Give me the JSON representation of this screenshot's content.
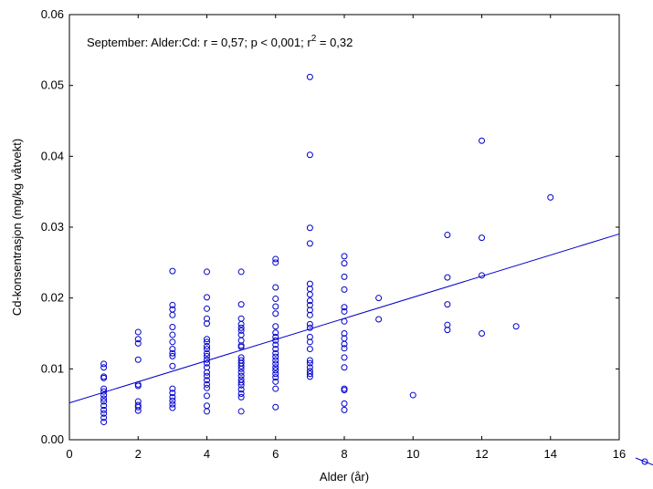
{
  "chart_data": {
    "type": "scatter",
    "title": "",
    "xlabel": "Alder (år)",
    "ylabel": "Cd-konsentrasjon (mg/kg våtvekt)",
    "xlim": [
      0,
      16
    ],
    "ylim": [
      0,
      0.06
    ],
    "x_ticks": [
      "0",
      "2",
      "4",
      "6",
      "8",
      "10",
      "12",
      "14",
      "16"
    ],
    "y_ticks": [
      "0.00",
      "0.01",
      "0.02",
      "0.03",
      "0.04",
      "0.05",
      "0.06"
    ],
    "grid": false,
    "annotation": {
      "prefix": "September:  Alder:Cd:    r = 0,57; p < 0,001; r",
      "sup": "2",
      "suffix": " = 0,32"
    },
    "marker_color": "#0000cc",
    "fit_line": {
      "intercept": 0.0052,
      "slope": 0.00149,
      "color": "#0000cc"
    },
    "points": [
      [
        1,
        0.0107
      ],
      [
        1,
        0.0102
      ],
      [
        1,
        0.0089
      ],
      [
        1,
        0.0087
      ],
      [
        1,
        0.0072
      ],
      [
        1,
        0.0068
      ],
      [
        1,
        0.0063
      ],
      [
        1,
        0.0058
      ],
      [
        1,
        0.0054
      ],
      [
        1,
        0.0048
      ],
      [
        1,
        0.0042
      ],
      [
        1,
        0.0037
      ],
      [
        1,
        0.0031
      ],
      [
        1,
        0.0025
      ],
      [
        2,
        0.0152
      ],
      [
        2,
        0.0142
      ],
      [
        2,
        0.0136
      ],
      [
        2,
        0.0113
      ],
      [
        2,
        0.0078
      ],
      [
        2,
        0.0076
      ],
      [
        2,
        0.0054
      ],
      [
        2,
        0.0049
      ],
      [
        2,
        0.0046
      ],
      [
        2,
        0.0041
      ],
      [
        3,
        0.0238
      ],
      [
        3,
        0.019
      ],
      [
        3,
        0.0184
      ],
      [
        3,
        0.0176
      ],
      [
        3,
        0.0159
      ],
      [
        3,
        0.0148
      ],
      [
        3,
        0.0138
      ],
      [
        3,
        0.0128
      ],
      [
        3,
        0.0122
      ],
      [
        3,
        0.0118
      ],
      [
        3,
        0.0104
      ],
      [
        3,
        0.0072
      ],
      [
        3,
        0.0066
      ],
      [
        3,
        0.006
      ],
      [
        3,
        0.0055
      ],
      [
        3,
        0.005
      ],
      [
        3,
        0.0045
      ],
      [
        4,
        0.0237
      ],
      [
        4,
        0.0201
      ],
      [
        4,
        0.0185
      ],
      [
        4,
        0.0171
      ],
      [
        4,
        0.0164
      ],
      [
        4,
        0.0142
      ],
      [
        4,
        0.0138
      ],
      [
        4,
        0.0132
      ],
      [
        4,
        0.0128
      ],
      [
        4,
        0.0122
      ],
      [
        4,
        0.0118
      ],
      [
        4,
        0.0113
      ],
      [
        4,
        0.0108
      ],
      [
        4,
        0.0102
      ],
      [
        4,
        0.0095
      ],
      [
        4,
        0.009
      ],
      [
        4,
        0.0084
      ],
      [
        4,
        0.0078
      ],
      [
        4,
        0.0073
      ],
      [
        4,
        0.0062
      ],
      [
        4,
        0.0048
      ],
      [
        4,
        0.004
      ],
      [
        5,
        0.0237
      ],
      [
        5,
        0.0191
      ],
      [
        5,
        0.0171
      ],
      [
        5,
        0.0163
      ],
      [
        5,
        0.0158
      ],
      [
        5,
        0.0154
      ],
      [
        5,
        0.0148
      ],
      [
        5,
        0.014
      ],
      [
        5,
        0.0133
      ],
      [
        5,
        0.0131
      ],
      [
        5,
        0.0116
      ],
      [
        5,
        0.0112
      ],
      [
        5,
        0.0108
      ],
      [
        5,
        0.0104
      ],
      [
        5,
        0.01
      ],
      [
        5,
        0.0095
      ],
      [
        5,
        0.009
      ],
      [
        5,
        0.0085
      ],
      [
        5,
        0.0081
      ],
      [
        5,
        0.0077
      ],
      [
        5,
        0.0071
      ],
      [
        5,
        0.0065
      ],
      [
        5,
        0.006
      ],
      [
        5,
        0.004
      ],
      [
        6,
        0.0255
      ],
      [
        6,
        0.025
      ],
      [
        6,
        0.0215
      ],
      [
        6,
        0.0199
      ],
      [
        6,
        0.0188
      ],
      [
        6,
        0.0178
      ],
      [
        6,
        0.016
      ],
      [
        6,
        0.0151
      ],
      [
        6,
        0.0145
      ],
      [
        6,
        0.014
      ],
      [
        6,
        0.0134
      ],
      [
        6,
        0.0128
      ],
      [
        6,
        0.0122
      ],
      [
        6,
        0.0117
      ],
      [
        6,
        0.0112
      ],
      [
        6,
        0.0107
      ],
      [
        6,
        0.0102
      ],
      [
        6,
        0.0098
      ],
      [
        6,
        0.0093
      ],
      [
        6,
        0.0088
      ],
      [
        6,
        0.0082
      ],
      [
        6,
        0.0072
      ],
      [
        6,
        0.0046
      ],
      [
        7,
        0.0512
      ],
      [
        7,
        0.0402
      ],
      [
        7,
        0.0299
      ],
      [
        7,
        0.0277
      ],
      [
        7,
        0.022
      ],
      [
        7,
        0.0213
      ],
      [
        7,
        0.0205
      ],
      [
        7,
        0.0196
      ],
      [
        7,
        0.019
      ],
      [
        7,
        0.0183
      ],
      [
        7,
        0.0176
      ],
      [
        7,
        0.0163
      ],
      [
        7,
        0.0158
      ],
      [
        7,
        0.0145
      ],
      [
        7,
        0.0138
      ],
      [
        7,
        0.0128
      ],
      [
        7,
        0.0112
      ],
      [
        7,
        0.0108
      ],
      [
        7,
        0.0102
      ],
      [
        7,
        0.0097
      ],
      [
        7,
        0.0093
      ],
      [
        7,
        0.0089
      ],
      [
        8,
        0.0259
      ],
      [
        8,
        0.0249
      ],
      [
        8,
        0.023
      ],
      [
        8,
        0.0212
      ],
      [
        8,
        0.0187
      ],
      [
        8,
        0.0181
      ],
      [
        8,
        0.0167
      ],
      [
        8,
        0.015
      ],
      [
        8,
        0.0143
      ],
      [
        8,
        0.0135
      ],
      [
        8,
        0.0129
      ],
      [
        8,
        0.0116
      ],
      [
        8,
        0.0102
      ],
      [
        8,
        0.0072
      ],
      [
        8,
        0.007
      ],
      [
        8,
        0.0051
      ],
      [
        8,
        0.0042
      ],
      [
        9,
        0.02
      ],
      [
        9,
        0.017
      ],
      [
        10,
        0.0063
      ],
      [
        11,
        0.0289
      ],
      [
        11,
        0.0229
      ],
      [
        11,
        0.0191
      ],
      [
        11,
        0.0162
      ],
      [
        11,
        0.0155
      ],
      [
        12,
        0.0422
      ],
      [
        12,
        0.0285
      ],
      [
        12,
        0.0232
      ],
      [
        12,
        0.015
      ],
      [
        13,
        0.016
      ],
      [
        14,
        0.0342
      ]
    ]
  }
}
